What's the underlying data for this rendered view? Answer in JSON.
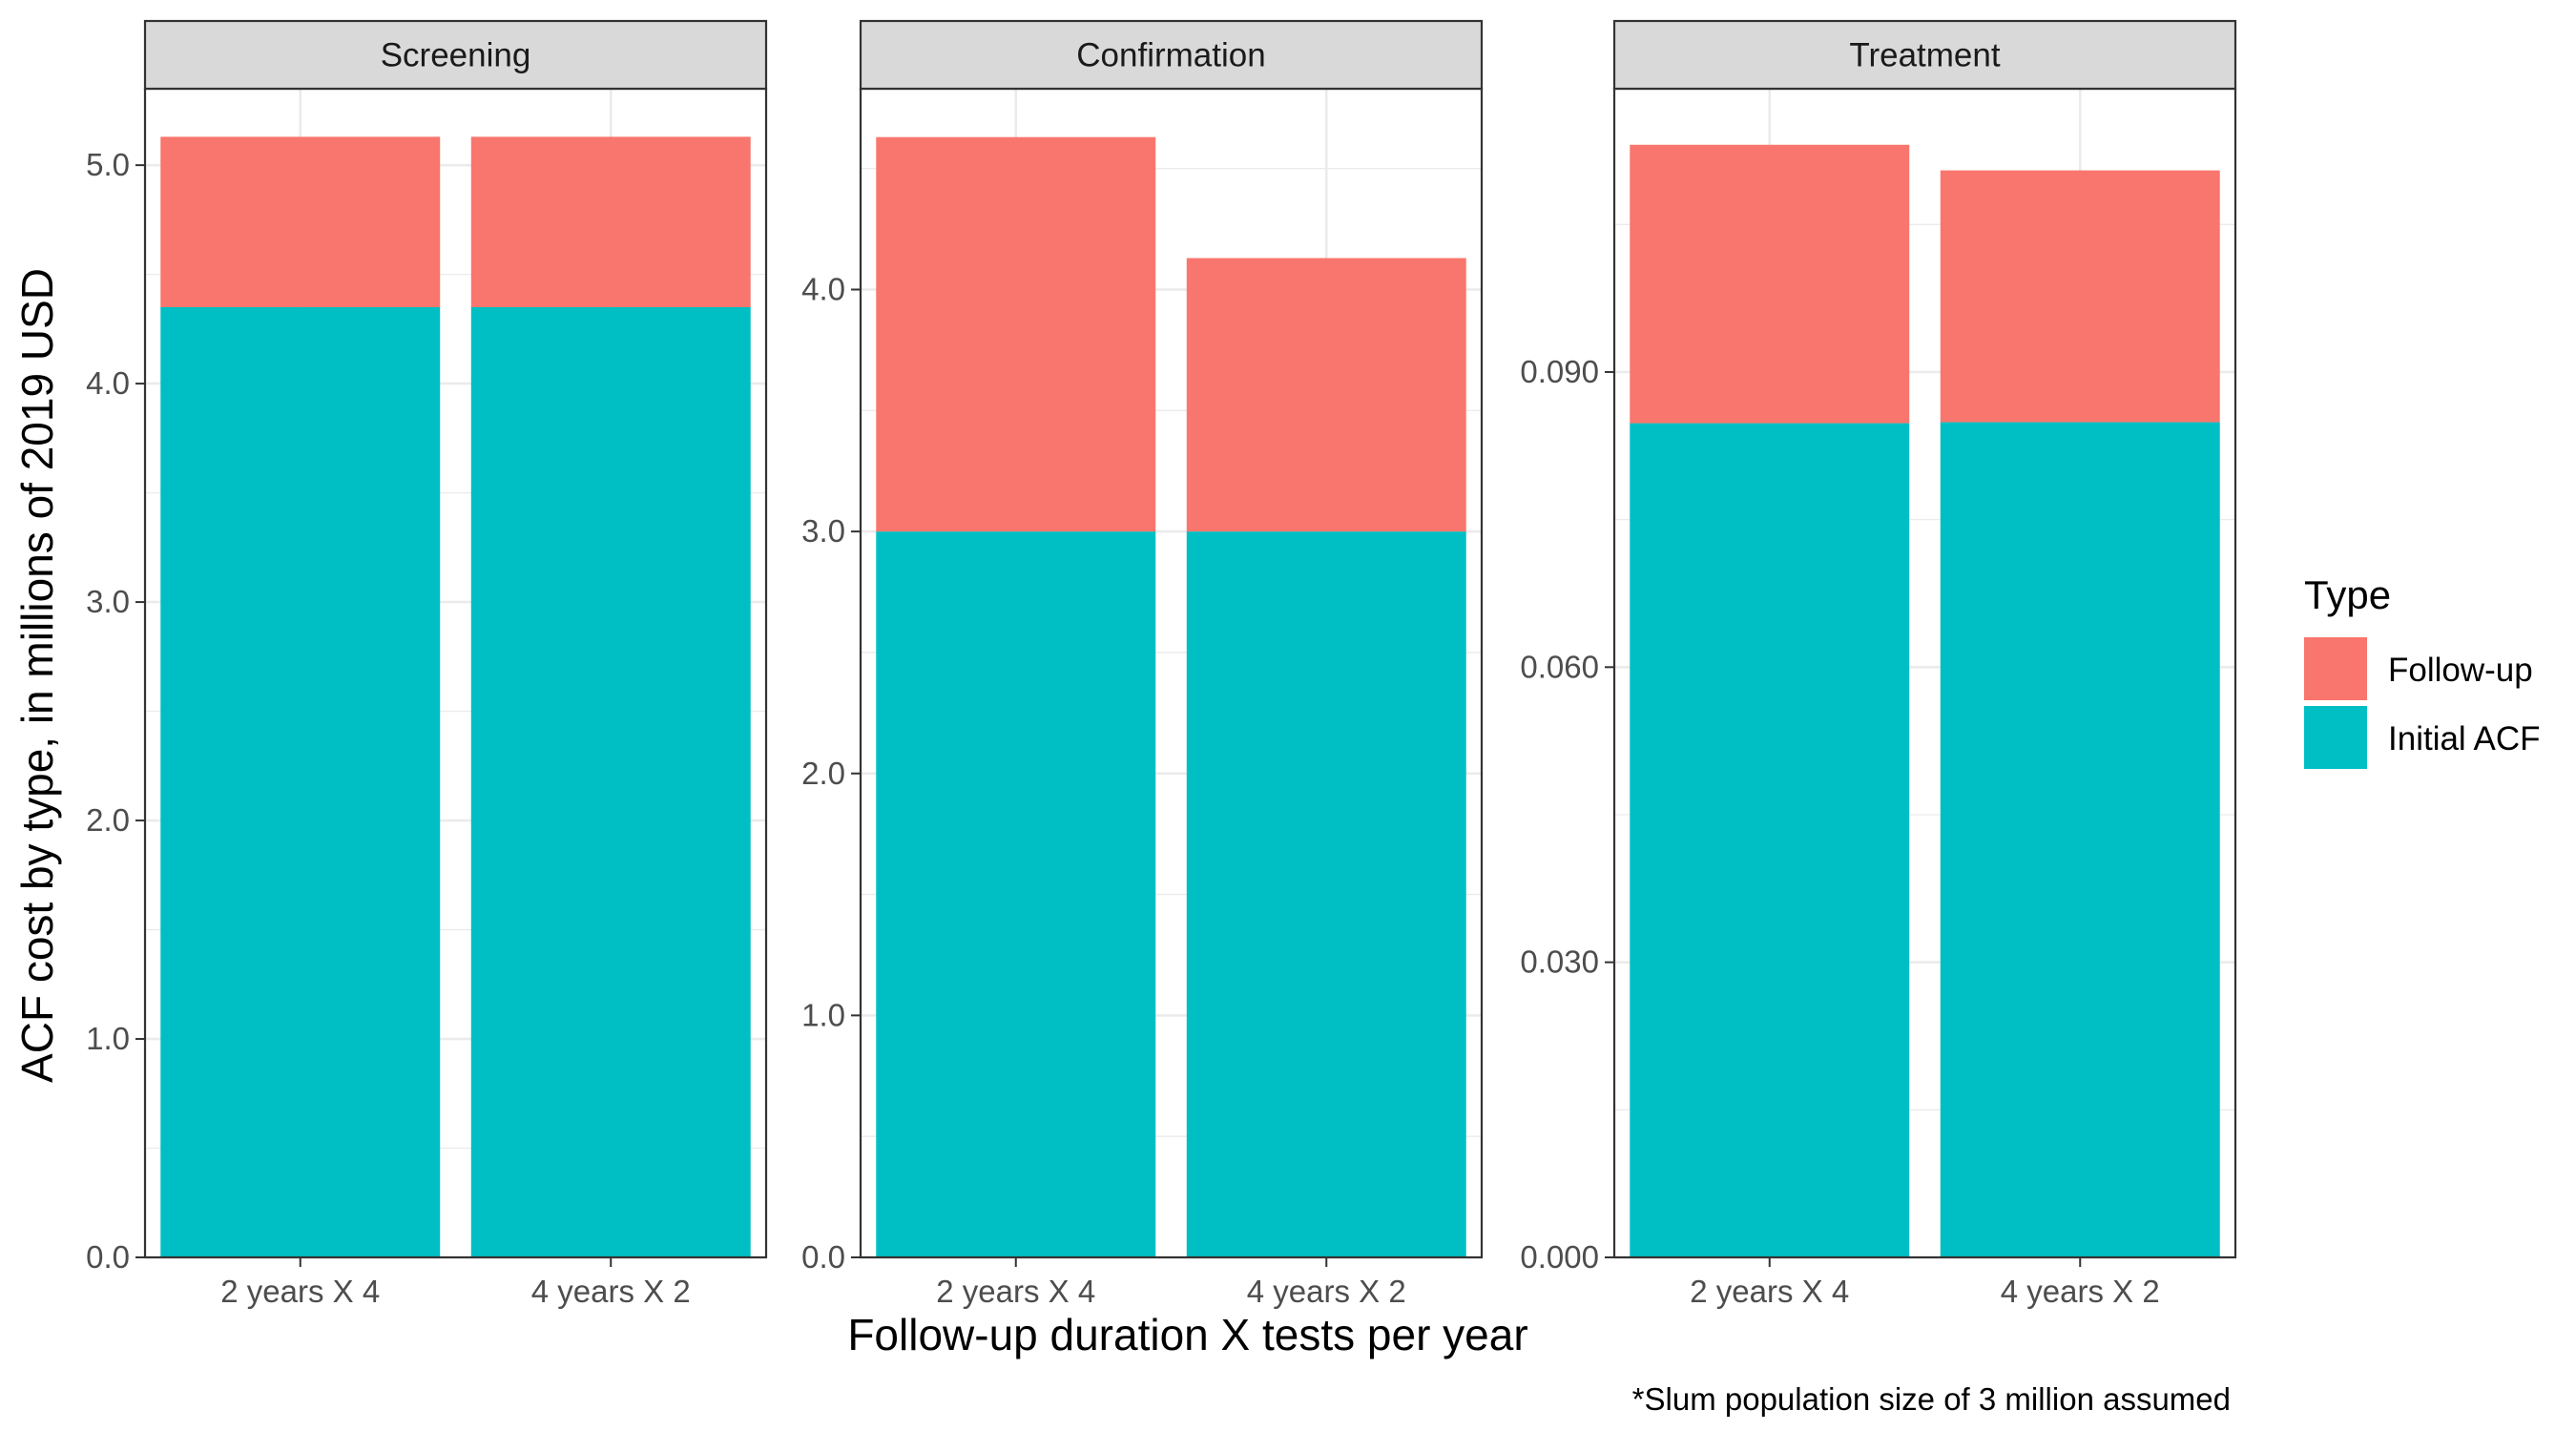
{
  "chart_data": {
    "type": "bar",
    "stacked": true,
    "facet_by": "cost component",
    "xlabel": "Follow-up duration X tests per year",
    "ylabel": "ACF cost by type, in millions of 2019 USD",
    "caption": "*Slum population size of 3 million assumed",
    "grid": true,
    "legend": {
      "title": "Type",
      "position": "right",
      "entries": [
        {
          "name": "Follow-up",
          "color": "#F8766D"
        },
        {
          "name": "Initial ACF",
          "color": "#00BFC4"
        }
      ]
    },
    "panels": [
      {
        "title": "Screening",
        "categories": [
          "2 years X 4",
          "4 years X 2"
        ],
        "ylim": [
          0,
          5.35
        ],
        "yticks": [
          0,
          1,
          2,
          3,
          4,
          5
        ],
        "tick_labels": [
          "0.0",
          "1.0",
          "2.0",
          "3.0",
          "4.0",
          "5.0"
        ],
        "series": [
          {
            "name": "Initial ACF",
            "values": [
              4.35,
              4.35
            ]
          },
          {
            "name": "Follow-up",
            "values": [
              0.78,
              0.78
            ]
          }
        ]
      },
      {
        "title": "Confirmation",
        "categories": [
          "2 years X 4",
          "4 years X 2"
        ],
        "ylim": [
          0,
          4.83
        ],
        "yticks": [
          0,
          1,
          2,
          3,
          4
        ],
        "tick_labels": [
          "0.0",
          "1.0",
          "2.0",
          "3.0",
          "4.0"
        ],
        "series": [
          {
            "name": "Initial ACF",
            "values": [
              3.0,
              3.0
            ]
          },
          {
            "name": "Follow-up",
            "values": [
              1.63,
              1.13
            ]
          }
        ]
      },
      {
        "title": "Treatment",
        "categories": [
          "2 years X 4",
          "4 years X 2"
        ],
        "ylim": [
          0,
          0.1188
        ],
        "yticks": [
          0,
          0.03,
          0.06,
          0.09
        ],
        "tick_labels": [
          "0.000",
          "0.030",
          "0.060",
          "0.090"
        ],
        "series": [
          {
            "name": "Initial ACF",
            "values": [
              0.0848,
              0.0849
            ]
          },
          {
            "name": "Follow-up",
            "values": [
              0.0283,
              0.0256
            ]
          }
        ]
      }
    ]
  }
}
